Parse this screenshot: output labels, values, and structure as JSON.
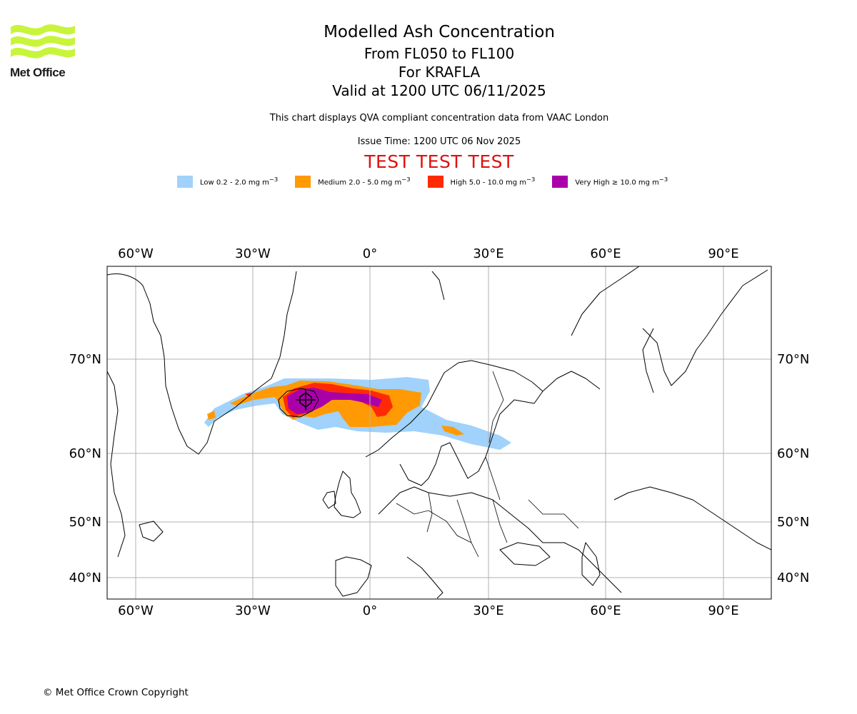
{
  "logo": {
    "text": "Met Office",
    "color": "#c8f53a"
  },
  "title": {
    "main": "Modelled Ash Concentration",
    "levels": "From FL050 to FL100",
    "volcano": "For KRAFLA",
    "valid": "Valid at 1200 UTC 06/11/2025"
  },
  "description": "This chart displays QVA compliant concentration data from VAAC London",
  "issue_time": "Issue Time: 1200 UTC 06 Nov 2025",
  "test_banner": "TEST TEST TEST",
  "legend": [
    {
      "label": "Low 0.2 - 2.0 mg m",
      "sup": "−3",
      "color": "#a0d2fb"
    },
    {
      "label": "Medium 2.0 - 5.0 mg m",
      "sup": "−3",
      "color": "#ff9a05"
    },
    {
      "label": "High 5.0 - 10.0 mg m",
      "sup": "−3",
      "color": "#ff2a05"
    },
    {
      "label": "Very High  ≥  10.0 mg m",
      "sup": "−3",
      "color": "#aa00aa"
    }
  ],
  "map": {
    "top_lon_labels": [
      "60°W",
      "30°W",
      "0°",
      "30°E",
      "60°E",
      "90°E"
    ],
    "bottom_lon_labels": [
      "60°W",
      "30°W",
      "0°",
      "30°E",
      "60°E",
      "90°E"
    ],
    "left_lat_labels": [
      "70°N",
      "60°N",
      "50°N",
      "40°N"
    ],
    "right_lat_labels": [
      "70°N",
      "60°N",
      "50°N",
      "40°N"
    ],
    "lon_lines": [
      -60,
      -30,
      0,
      30,
      60,
      90
    ],
    "lat_lines": [
      70,
      60,
      50,
      40
    ],
    "volcano_name": "KRAFLA"
  },
  "copyright": "© Met Office Crown Copyright"
}
